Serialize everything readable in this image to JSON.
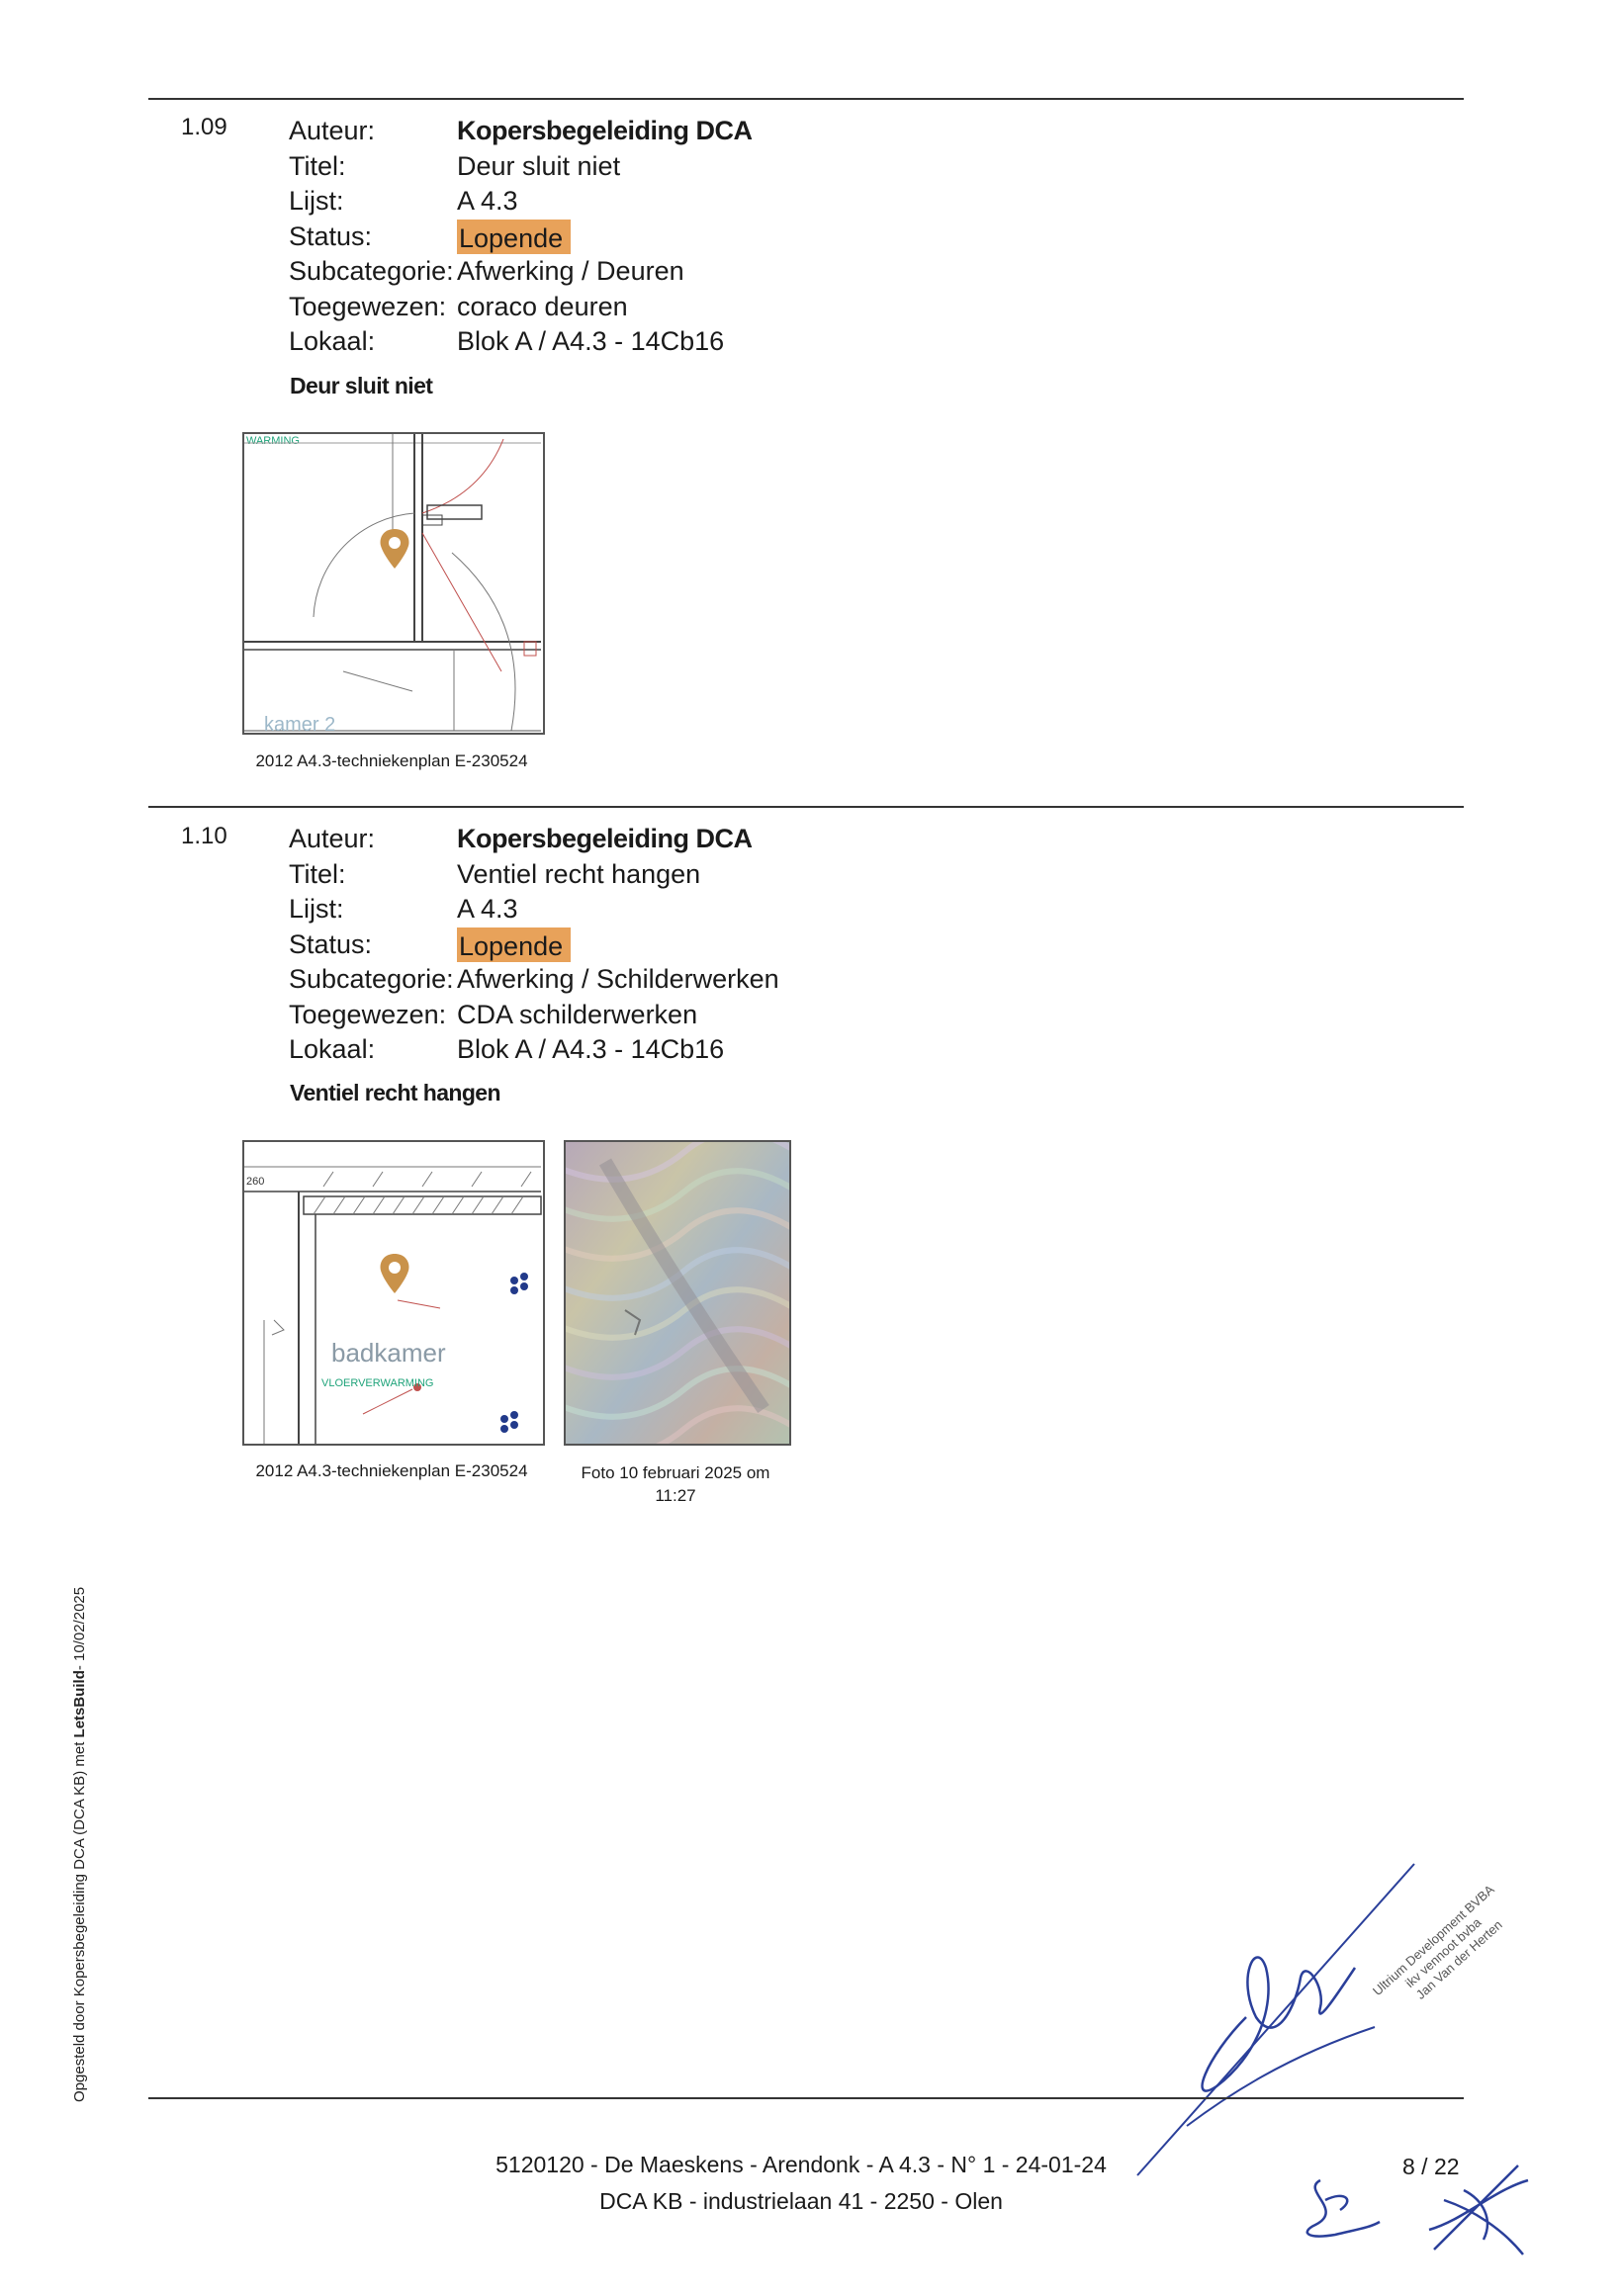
{
  "items": [
    {
      "number": "1.09",
      "labels": {
        "author": "Auteur:",
        "title": "Titel:",
        "list": "Lijst:",
        "status": "Status:",
        "subcategory": "Subcategorie:",
        "assigned": "Toegewezen:",
        "location": "Lokaal:"
      },
      "author": "Kopersbegeleiding DCA",
      "title": "Deur sluit niet",
      "list": "A 4.3",
      "status": "Lopende",
      "subcategory": "Afwerking / Deuren",
      "assigned": "coraco deuren",
      "location": "Blok A / A4.3 - 14Cb16",
      "description": "Deur sluit niet",
      "plan_label": "WARMING",
      "room_label": "kamer 2",
      "caption": "2012 A4.3-techniekenplan E-230524"
    },
    {
      "number": "1.10",
      "labels": {
        "author": "Auteur:",
        "title": "Titel:",
        "list": "Lijst:",
        "status": "Status:",
        "subcategory": "Subcategorie:",
        "assigned": "Toegewezen:",
        "location": "Lokaal:"
      },
      "author": "Kopersbegeleiding DCA",
      "title": "Ventiel recht hangen",
      "list": "A 4.3",
      "status": "Lopende",
      "subcategory": "Afwerking / Schilderwerken",
      "assigned": "CDA schilderwerken",
      "location": "Blok A / A4.3 - 14Cb16",
      "description": "Ventiel recht hangen",
      "plan_dim": "260",
      "room_label": "badkamer",
      "room_sub": "VLOERVERWARMING",
      "caption": "2012 A4.3-techniekenplan E-230524",
      "photo_caption": "Foto 10 februari 2025 om 11:27"
    }
  ],
  "sidebar": {
    "prefix": "Opgesteld door Kopersbegeleiding DCA (DCA KB) met",
    "brand": "LetsBuild",
    "suffix": "- 10/02/2025"
  },
  "footer": {
    "line1": "5120120 - De Maeskens - Arendonk - A 4.3 - N° 1 - 24-01-24",
    "line2": "DCA KB - industrielaan 41 - 2250 - Olen"
  },
  "page_number": "8 / 22",
  "stamp": {
    "line1": "Ultrium Development BVBA",
    "line2": "ikv vennoot bvba",
    "line3": "Jan Van der Herten"
  },
  "colors": {
    "status_bg": "#e8a25a",
    "pin": "#c9924a",
    "plan_green": "#1fa37a",
    "plan_red": "#c0504d"
  }
}
